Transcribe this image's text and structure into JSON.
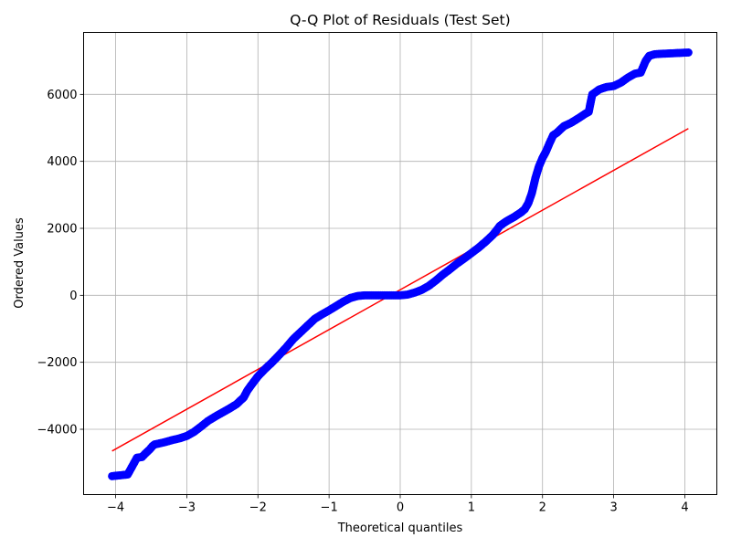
{
  "chart_data": {
    "type": "scatter",
    "title": "Q-Q Plot of Residuals (Test Set)",
    "xlabel": "Theoretical quantiles",
    "ylabel": "Ordered Values",
    "xlim": [
      -4.45,
      4.45
    ],
    "ylim": [
      -5950,
      7850
    ],
    "grid": true,
    "x_ticks": [
      -4,
      -3,
      -2,
      -1,
      0,
      1,
      2,
      3,
      4
    ],
    "y_ticks": [
      -4000,
      -2000,
      0,
      2000,
      4000,
      6000
    ],
    "x_tick_labels": [
      "−4",
      "−3",
      "−2",
      "−1",
      "0",
      "1",
      "2",
      "3",
      "4"
    ],
    "y_tick_labels": [
      "−4000",
      "−2000",
      "0",
      "2000",
      "4000",
      "6000"
    ],
    "colors": {
      "points": "#0000ff",
      "fit_line": "#ff0000",
      "grid": "#b0b0b0"
    },
    "series": [
      {
        "kind": "points",
        "x": [
          -4.05,
          -3.83,
          -3.7,
          -3.63,
          -3.57,
          -3.52,
          -3.48,
          -3.45,
          -3.4,
          -3.3,
          -3.2,
          -3.1,
          -3.0,
          -2.9,
          -2.8,
          -2.7,
          -2.6,
          -2.5,
          -2.4,
          -2.3,
          -2.2,
          -2.15,
          -2.1,
          -2.05,
          -2.0,
          -1.95,
          -1.9,
          -1.8,
          -1.7,
          -1.6,
          -1.5,
          -1.4,
          -1.3,
          -1.2,
          -1.1,
          -1.0,
          -0.9,
          -0.8,
          -0.7,
          -0.6,
          -0.5,
          -0.4,
          -0.3,
          -0.2,
          -0.1,
          0.0,
          0.1,
          0.2,
          0.3,
          0.4,
          0.5,
          0.6,
          0.7,
          0.8,
          0.9,
          1.0,
          1.1,
          1.2,
          1.3,
          1.35,
          1.4,
          1.45,
          1.5,
          1.6,
          1.7,
          1.75,
          1.8,
          1.85,
          1.9,
          1.95,
          2.0,
          2.05,
          2.1,
          2.15,
          2.2,
          2.3,
          2.4,
          2.5,
          2.6,
          2.65,
          2.68,
          2.7,
          2.8,
          2.9,
          3.0,
          3.1,
          3.2,
          3.3,
          3.38,
          3.45,
          3.5,
          3.58,
          3.65,
          3.75,
          3.85,
          4.05
        ],
        "y": [
          -5400,
          -5350,
          -4850,
          -4830,
          -4700,
          -4600,
          -4500,
          -4450,
          -4430,
          -4380,
          -4320,
          -4270,
          -4200,
          -4080,
          -3920,
          -3750,
          -3620,
          -3500,
          -3380,
          -3250,
          -3050,
          -2850,
          -2700,
          -2560,
          -2420,
          -2310,
          -2200,
          -2000,
          -1780,
          -1550,
          -1300,
          -1100,
          -900,
          -700,
          -570,
          -450,
          -320,
          -190,
          -80,
          -20,
          0,
          0,
          0,
          0,
          0,
          0,
          20,
          80,
          160,
          280,
          440,
          620,
          780,
          950,
          1100,
          1260,
          1420,
          1600,
          1800,
          1930,
          2070,
          2150,
          2220,
          2340,
          2480,
          2570,
          2750,
          3050,
          3500,
          3850,
          4100,
          4300,
          4550,
          4780,
          4850,
          5050,
          5150,
          5280,
          5420,
          5480,
          5800,
          6000,
          6150,
          6220,
          6250,
          6350,
          6500,
          6620,
          6650,
          7000,
          7150,
          7200,
          7210,
          7220,
          7230,
          7250
        ]
      },
      {
        "kind": "fit_line",
        "x": [
          -4.05,
          4.05
        ],
        "y": [
          -4650,
          4980
        ]
      }
    ]
  }
}
